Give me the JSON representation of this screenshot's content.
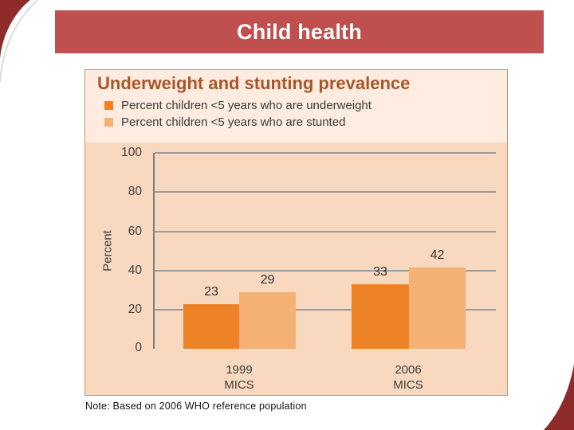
{
  "header": {
    "title": "Child health"
  },
  "note": {
    "text": "Note: Based on 2006 WHO reference population"
  },
  "colors": {
    "header_bg": "#bf504d",
    "corner_accent": "#8e2b2b",
    "panel_border": "#c79066",
    "panel_header_bg": "#fdecdf",
    "plot_bg": "#f8d9bf",
    "chart_title_text": "#aa552a",
    "underweight_orange": "#ee8227",
    "stunted_orange": "#f5b173",
    "gridline_gray": "#9c9c9c"
  },
  "chart_data": {
    "type": "bar",
    "title": "Underweight and stunting prevalence",
    "ylabel": "Percent",
    "ylim": [
      0,
      100
    ],
    "ytick_labels": [
      100,
      80,
      60,
      40,
      20,
      0
    ],
    "grid": true,
    "legend_position": "top-left",
    "categories": [
      {
        "year": "1999",
        "survey": "MICS"
      },
      {
        "year": "2006",
        "survey": "MICS"
      }
    ],
    "series": [
      {
        "name": "Percent children <5 years who are underweight",
        "color": "#ee8227",
        "values": [
          23,
          33
        ]
      },
      {
        "name": "Percent children <5 years who are stunted",
        "color": "#f5b173",
        "values": [
          29,
          42
        ]
      }
    ]
  }
}
